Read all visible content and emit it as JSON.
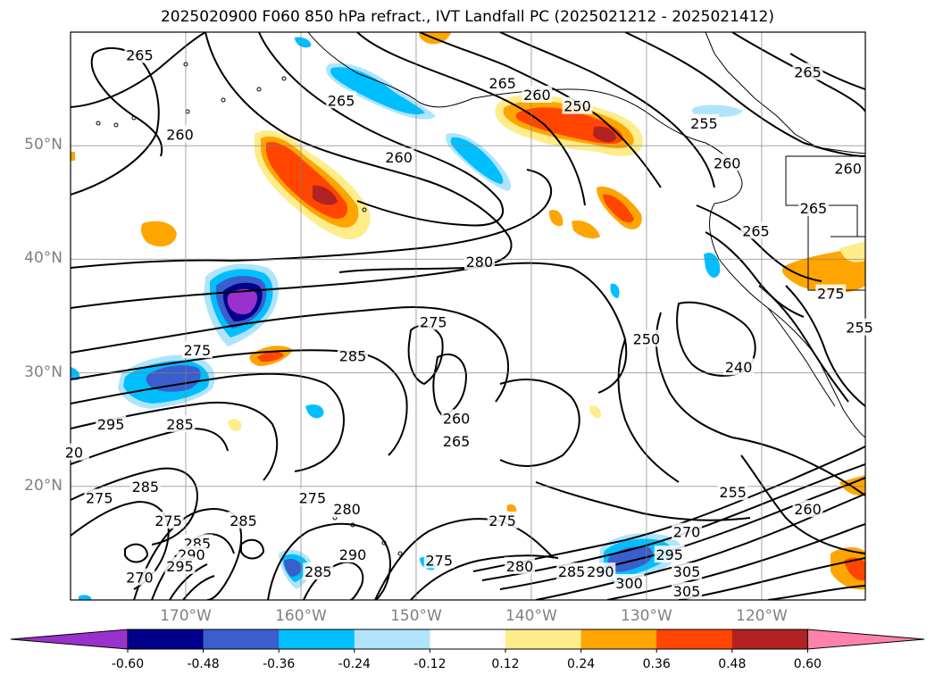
{
  "title": "2025020900 F060 850 hPa refract., IVT Landfall PC (2025021212 - 2025021412)",
  "map": {
    "lon_range": [
      -180,
      -111
    ],
    "lat_range": [
      10,
      60
    ],
    "lat_labels": [
      {
        "lat": 50,
        "label": "50°N"
      },
      {
        "lat": 40,
        "label": "40°N"
      },
      {
        "lat": 30,
        "label": "30°N"
      },
      {
        "lat": 20,
        "label": "20°N"
      }
    ],
    "lon_labels": [
      {
        "lon": -170,
        "label": "170°W"
      },
      {
        "lon": -160,
        "label": "160°W"
      },
      {
        "lon": -150,
        "label": "150°W"
      },
      {
        "lon": -140,
        "label": "140°W"
      },
      {
        "lon": -130,
        "label": "130°W"
      },
      {
        "lon": -120,
        "label": "120°W"
      }
    ],
    "contour_labels": [
      {
        "text": "265",
        "lon": -174,
        "lat": 58
      },
      {
        "text": "260",
        "lon": -170.5,
        "lat": 51
      },
      {
        "text": "265",
        "lon": -156.5,
        "lat": 54
      },
      {
        "text": "260",
        "lon": -151.5,
        "lat": 49
      },
      {
        "text": "265",
        "lon": -142.5,
        "lat": 55.5
      },
      {
        "text": "260",
        "lon": -139.5,
        "lat": 54.5
      },
      {
        "text": "250",
        "lon": -136,
        "lat": 53.5
      },
      {
        "text": "255",
        "lon": -125,
        "lat": 52
      },
      {
        "text": "260",
        "lon": -123,
        "lat": 48.5
      },
      {
        "text": "265",
        "lon": -116,
        "lat": 56.5
      },
      {
        "text": "260",
        "lon": -112.5,
        "lat": 48
      },
      {
        "text": "265",
        "lon": -115.5,
        "lat": 44.5
      },
      {
        "text": "265",
        "lon": -120.5,
        "lat": 42.5
      },
      {
        "text": "280",
        "lon": -144.5,
        "lat": 39.8
      },
      {
        "text": "250",
        "lon": -130,
        "lat": 33
      },
      {
        "text": "240",
        "lon": -122,
        "lat": 30.5
      },
      {
        "text": "255",
        "lon": -111.5,
        "lat": 34
      },
      {
        "text": "275",
        "lon": -114,
        "lat": 37
      },
      {
        "text": "275",
        "lon": -148.5,
        "lat": 34.5
      },
      {
        "text": "285",
        "lon": -155.5,
        "lat": 31.5
      },
      {
        "text": "275",
        "lon": -169,
        "lat": 32
      },
      {
        "text": "295",
        "lon": -176.5,
        "lat": 25.5
      },
      {
        "text": "285",
        "lon": -170.5,
        "lat": 25.5
      },
      {
        "text": "260",
        "lon": -146.5,
        "lat": 26
      },
      {
        "text": "265",
        "lon": -146.5,
        "lat": 24
      },
      {
        "text": "285",
        "lon": -173.5,
        "lat": 20
      },
      {
        "text": "275",
        "lon": -177.5,
        "lat": 19
      },
      {
        "text": "275",
        "lon": -171.5,
        "lat": 17
      },
      {
        "text": "275",
        "lon": -159,
        "lat": 19
      },
      {
        "text": "285",
        "lon": -165,
        "lat": 17
      },
      {
        "text": "280",
        "lon": -156,
        "lat": 18
      },
      {
        "text": "285",
        "lon": -169,
        "lat": 15
      },
      {
        "text": "290",
        "lon": -169.5,
        "lat": 14
      },
      {
        "text": "295",
        "lon": -170.5,
        "lat": 13
      },
      {
        "text": "270",
        "lon": -174,
        "lat": 12
      },
      {
        "text": "285",
        "lon": -158.5,
        "lat": 12.5
      },
      {
        "text": "290",
        "lon": -155.5,
        "lat": 14
      },
      {
        "text": "275",
        "lon": -148,
        "lat": 13.5
      },
      {
        "text": "275",
        "lon": -142.5,
        "lat": 17
      },
      {
        "text": "280",
        "lon": -141,
        "lat": 13
      },
      {
        "text": "285",
        "lon": -136.5,
        "lat": 12.5
      },
      {
        "text": "290",
        "lon": -134,
        "lat": 12.5
      },
      {
        "text": "300",
        "lon": -131.5,
        "lat": 11.5
      },
      {
        "text": "295",
        "lon": -128,
        "lat": 14
      },
      {
        "text": "270",
        "lon": -126.5,
        "lat": 16
      },
      {
        "text": "255",
        "lon": -122.5,
        "lat": 19.5
      },
      {
        "text": "260",
        "lon": -116,
        "lat": 18
      },
      {
        "text": "305",
        "lon": -126.5,
        "lat": 12.5
      },
      {
        "text": "305",
        "lon": -126.5,
        "lat": 10.8
      },
      {
        "text": "20",
        "lon": -179.7,
        "lat": 23
      }
    ]
  },
  "colorbar": {
    "ticks": [
      "-0.60",
      "-0.48",
      "-0.36",
      "-0.24",
      "-0.12",
      "0.12",
      "0.24",
      "0.36",
      "0.48",
      "0.60"
    ],
    "colors": [
      "#9932cc",
      "#00008b",
      "#3a5fcd",
      "#00bfff",
      "#afe4fb",
      "#ffffff",
      "#ffec8b",
      "#ffa500",
      "#ff4500",
      "#b22222",
      "#ff82ab"
    ]
  }
}
